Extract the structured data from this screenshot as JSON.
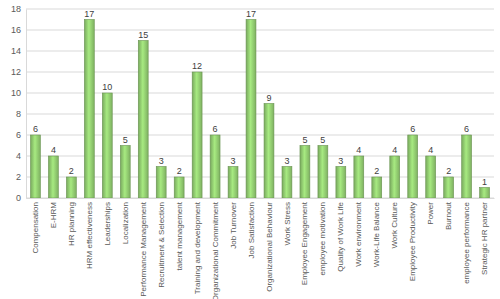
{
  "chart_data": {
    "type": "bar",
    "categories": [
      "Compensation",
      "E-HRM",
      "HR planning",
      "HRM effectiveness",
      "Leaderships",
      "Localization",
      "Performance Management",
      "Recruitment & Selection",
      "talent management",
      "Training and development",
      "Organizational Commitment",
      "Job Turnover",
      "Job Satisfaction",
      "Organizational Behaviour",
      "Work Stress",
      "Employee Engagement",
      "employee motivation",
      "Quality of Work Life",
      "Work environment",
      "Work-Life Balance",
      "Work Culture",
      "Employee Productivity",
      "Power",
      "Burnout",
      "employee performance",
      "Strategic HR partner"
    ],
    "values": [
      6,
      4,
      2,
      17,
      10,
      5,
      15,
      3,
      2,
      12,
      6,
      3,
      17,
      9,
      3,
      5,
      5,
      3,
      4,
      2,
      4,
      6,
      4,
      2,
      6,
      1
    ],
    "color": "#8cc46c",
    "ylim": [
      0,
      18
    ],
    "yticks": [
      0,
      2,
      4,
      6,
      8,
      10,
      12,
      14,
      16,
      18
    ],
    "grid": true,
    "data_labels": true
  }
}
